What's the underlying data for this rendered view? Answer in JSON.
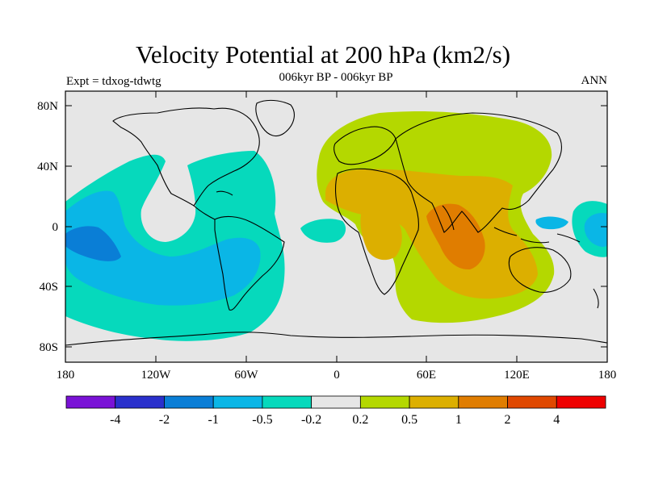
{
  "title": "Velocity Potential at 200 hPa (km2/s)",
  "subtitle": "006kyr BP - 006kyr BP",
  "experiment": "Expt = tdxog-tdwtg",
  "season": "ANN",
  "map": {
    "projection": "cylindrical-equidistant",
    "lon_range": [
      -180,
      180
    ],
    "lat_range": [
      -90,
      90
    ],
    "background_color": "#e6e6e6",
    "lat_tick_labels": [
      "80N",
      "40N",
      "0",
      "40S",
      "80S"
    ],
    "lon_tick_labels": [
      "180",
      "120W",
      "60W",
      "0",
      "60E",
      "120E",
      "180"
    ]
  },
  "colorbar": {
    "colors": [
      "#7a12d6",
      "#2a30cc",
      "#0a7ed6",
      "#0ab6e6",
      "#06d9bc",
      "#e6e6e6",
      "#b4d800",
      "#dcaf00",
      "#e07d00",
      "#e04800",
      "#ee0000"
    ],
    "labels": [
      "-4",
      "-2",
      "-1",
      "-0.5",
      "-0.2",
      "0.2",
      "0.5",
      "1",
      "2",
      "4"
    ]
  }
}
